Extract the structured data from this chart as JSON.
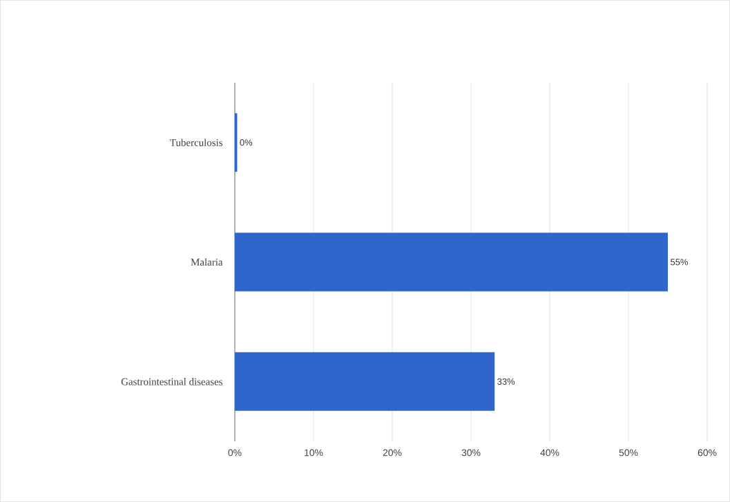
{
  "chart_data": {
    "type": "bar",
    "orientation": "horizontal",
    "categories": [
      "Tuberculosis",
      "Malaria",
      "Gastrointestinal diseases"
    ],
    "values": [
      0.3,
      55,
      33
    ],
    "value_labels": [
      "0%",
      "55%",
      "33%"
    ],
    "color": "#2e66cc",
    "xlim": [
      0,
      60
    ],
    "xticks": [
      {
        "value": 0,
        "label": "0%"
      },
      {
        "value": 10,
        "label": "10%"
      },
      {
        "value": 20,
        "label": "20%"
      },
      {
        "value": 30,
        "label": "30%"
      },
      {
        "value": 40,
        "label": "40%"
      },
      {
        "value": 50,
        "label": "50%"
      },
      {
        "value": 60,
        "label": "60%"
      }
    ],
    "grid": "x"
  }
}
